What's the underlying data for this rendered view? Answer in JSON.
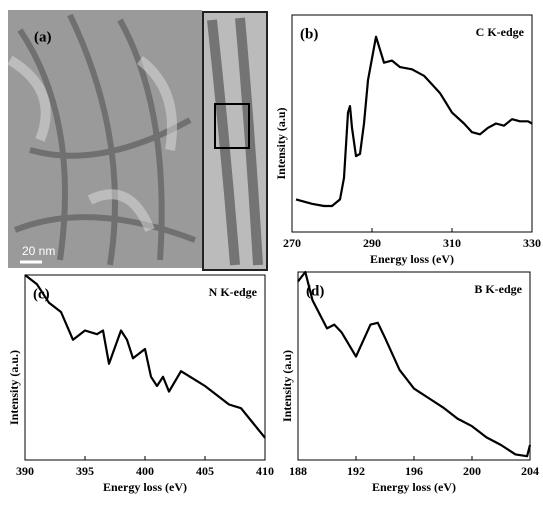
{
  "image": {
    "label": "(a)",
    "scale_bar": "20 nm"
  },
  "chart_data": [
    {
      "type": "line",
      "label": "(b)",
      "title": "C K-edge",
      "xlabel": "Energy loss (eV)",
      "ylabel": "Intensity (a.u)",
      "color": "#000000",
      "x": [
        271,
        275,
        278,
        280,
        282,
        283,
        284,
        284.5,
        285,
        286,
        287,
        288,
        289,
        290,
        291,
        292,
        293,
        295,
        297,
        300,
        303,
        305,
        307,
        310,
        313,
        315,
        317,
        319,
        321,
        323,
        325,
        327,
        329,
        330
      ],
      "values": [
        0.15,
        0.13,
        0.12,
        0.12,
        0.15,
        0.25,
        0.55,
        0.58,
        0.48,
        0.35,
        0.36,
        0.5,
        0.7,
        0.8,
        0.9,
        0.84,
        0.78,
        0.79,
        0.76,
        0.75,
        0.72,
        0.68,
        0.64,
        0.55,
        0.5,
        0.46,
        0.45,
        0.48,
        0.5,
        0.49,
        0.52,
        0.51,
        0.51,
        0.5
      ],
      "xlim": [
        270,
        330
      ],
      "xticks": [
        270,
        290,
        310,
        330
      ],
      "ylim": [
        0,
        1
      ]
    },
    {
      "type": "line",
      "label": "(c)",
      "title": "N K-edge",
      "xlabel": "Energy loss (eV)",
      "ylabel": "Intensity (a.u.)",
      "color": "#000000",
      "x": [
        390,
        391,
        392,
        393,
        394,
        395,
        396,
        396.5,
        397,
        398,
        398.5,
        399,
        400,
        400.5,
        401,
        401.5,
        402,
        403,
        404,
        405,
        406,
        407,
        408,
        409,
        410
      ],
      "values": [
        1.0,
        0.95,
        0.85,
        0.8,
        0.65,
        0.7,
        0.68,
        0.7,
        0.52,
        0.7,
        0.65,
        0.55,
        0.6,
        0.45,
        0.4,
        0.45,
        0.37,
        0.48,
        0.44,
        0.4,
        0.35,
        0.3,
        0.28,
        0.2,
        0.12
      ],
      "xlim": [
        390,
        410
      ],
      "xticks": [
        390,
        395,
        400,
        405,
        410
      ],
      "ylim": [
        0,
        1
      ]
    },
    {
      "type": "line",
      "label": "(d)",
      "title": "B K-edge",
      "xlabel": "Energy loss (eV)",
      "ylabel": "Intensity (a.u)",
      "color": "#000000",
      "x": [
        188,
        188.5,
        189,
        190,
        190.5,
        191,
        192,
        193,
        193.5,
        194,
        195,
        196,
        197,
        198,
        199,
        200,
        201,
        202,
        203,
        203.8,
        204
      ],
      "values": [
        0.95,
        1.0,
        0.85,
        0.7,
        0.72,
        0.68,
        0.55,
        0.72,
        0.73,
        0.65,
        0.48,
        0.38,
        0.33,
        0.28,
        0.22,
        0.18,
        0.12,
        0.08,
        0.03,
        0.02,
        0.08
      ],
      "xlim": [
        188,
        204
      ],
      "xticks": [
        188,
        192,
        196,
        200,
        204
      ],
      "ylim": [
        0,
        1
      ]
    }
  ]
}
